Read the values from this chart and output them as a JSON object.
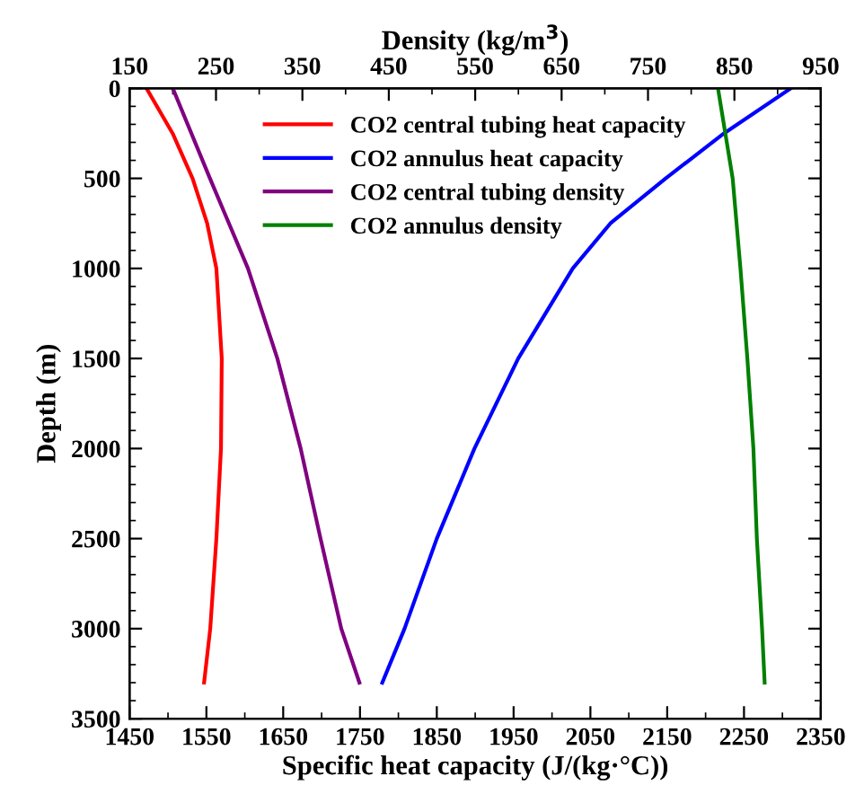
{
  "chart_data": {
    "type": "line",
    "xlabel": "Specific heat capacity (J/(kg·°C))",
    "x2label": "Density (kg/m$^{3}$)",
    "ylabel": "Depth (m)",
    "xlim": [
      1450,
      2350
    ],
    "xticks": [
      1450,
      1550,
      1650,
      1750,
      1850,
      1950,
      2050,
      2150,
      2250,
      2350
    ],
    "x2lim": [
      150,
      950
    ],
    "x2ticks": [
      150,
      250,
      350,
      450,
      550,
      650,
      750,
      850,
      950
    ],
    "ylim": [
      3500,
      0
    ],
    "yticks": [
      0,
      500,
      1000,
      1500,
      2000,
      2500,
      3000,
      3500
    ],
    "grid": false,
    "legend": "top",
    "marker": "none",
    "line_style": "solid",
    "series": [
      {
        "name": "CO2 central tubing heat capacity",
        "color": "#ff0000",
        "x": [
          1472,
          1506,
          1532,
          1551,
          1563,
          1570,
          1569,
          1563,
          1555,
          1547
        ],
        "values": [
          0,
          250,
          500,
          750,
          1000,
          1500,
          2000,
          2500,
          3000,
          3300
        ]
      },
      {
        "name": "CO2 annulus heat capacity",
        "color": "#0000ff",
        "x": [
          2311,
          2224,
          2148,
          2076,
          2027,
          1956,
          1899,
          1850,
          1808,
          1779
        ],
        "values": [
          0,
          250,
          500,
          750,
          1000,
          1500,
          2000,
          2500,
          3000,
          3300
        ]
      },
      {
        "name": "CO2 central tubing density",
        "color": "#800080",
        "axis": "x2",
        "x": [
          200,
          243,
          287,
          321,
          348,
          371,
          395,
          416
        ],
        "values": [
          0,
          500,
          1000,
          1500,
          2000,
          2500,
          3000,
          3300
        ]
      },
      {
        "name": "CO2 annulus density",
        "color": "#008000",
        "axis": "x2",
        "x": [
          831,
          848,
          857,
          865,
          872,
          876,
          882,
          885
        ],
        "values": [
          0,
          500,
          1000,
          1500,
          2000,
          2500,
          3000,
          3300
        ]
      }
    ]
  }
}
